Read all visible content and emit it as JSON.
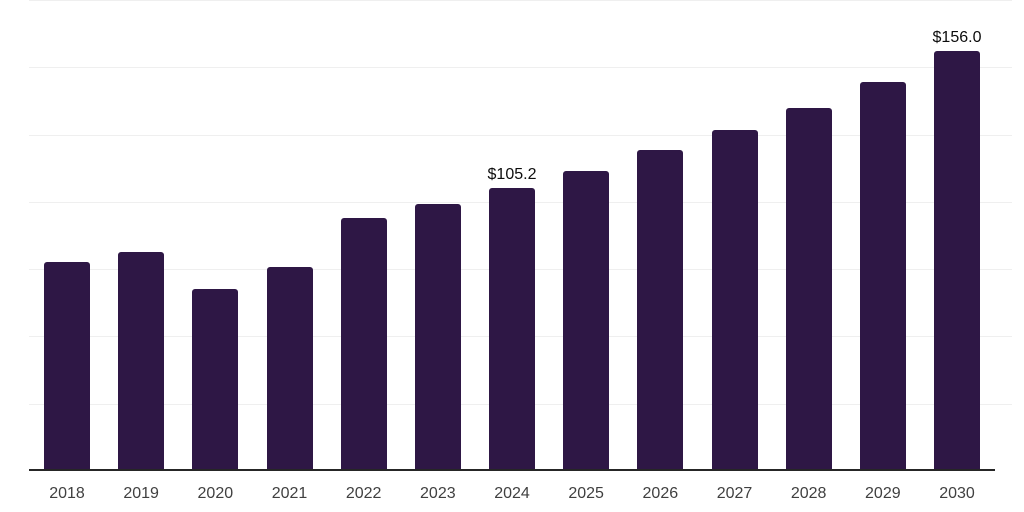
{
  "chart_data": {
    "type": "bar",
    "title": "",
    "xlabel": "",
    "ylabel": "",
    "categories": [
      "2018",
      "2019",
      "2020",
      "2021",
      "2022",
      "2023",
      "2024",
      "2025",
      "2026",
      "2027",
      "2028",
      "2029",
      "2030"
    ],
    "values": [
      77.8,
      81.4,
      67.8,
      75.8,
      94.0,
      99.2,
      105.2,
      111.5,
      119.3,
      126.7,
      134.9,
      144.5,
      156.0
    ],
    "labeled_points": [
      {
        "category": "2024",
        "label": "$105.2"
      },
      {
        "category": "2030",
        "label": "$156.0"
      }
    ],
    "value_prefix": "$",
    "ylim": [
      0,
      175
    ],
    "grid_step": 25,
    "grid": "horizontal",
    "y_tick_labels": "hidden",
    "legend_position": "none",
    "bar_color": "#2e1745",
    "axis_color": "#262626",
    "gridline_color": "#efefef",
    "x_label_color": "#404040",
    "data_label_color": "#0d0d0d",
    "background_color": "#ffffff"
  }
}
